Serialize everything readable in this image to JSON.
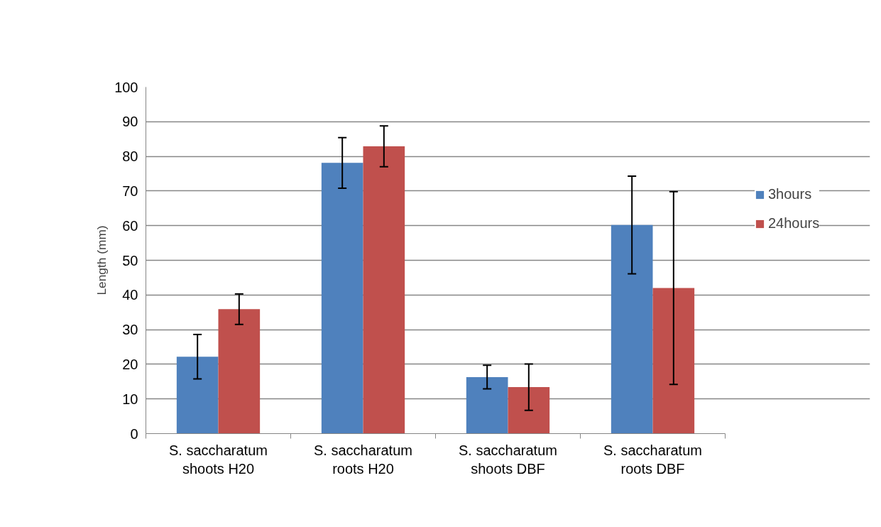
{
  "chart_data": {
    "type": "bar",
    "ylabel": "Length (mm)",
    "categories": [
      "S. saccharatum shoots H20",
      "S. saccharatum roots H20",
      "S. saccharatum shoots DBF",
      "S. saccharatum roots DBF"
    ],
    "series": [
      {
        "name": "3hours",
        "color": "#4f81bd",
        "values": [
          22.2,
          78.1,
          16.3,
          60.2
        ],
        "errors": [
          6.4,
          7.3,
          3.4,
          14.1
        ]
      },
      {
        "name": "24hours",
        "color": "#c0504d",
        "values": [
          35.9,
          82.9,
          13.4,
          42.0
        ],
        "errors": [
          4.4,
          5.9,
          6.7,
          27.8
        ]
      }
    ],
    "ylim": [
      0,
      100
    ],
    "yticks": [
      0,
      10,
      20,
      30,
      40,
      50,
      60,
      70,
      80,
      90,
      100
    ],
    "grid": "y",
    "legend": "right"
  }
}
